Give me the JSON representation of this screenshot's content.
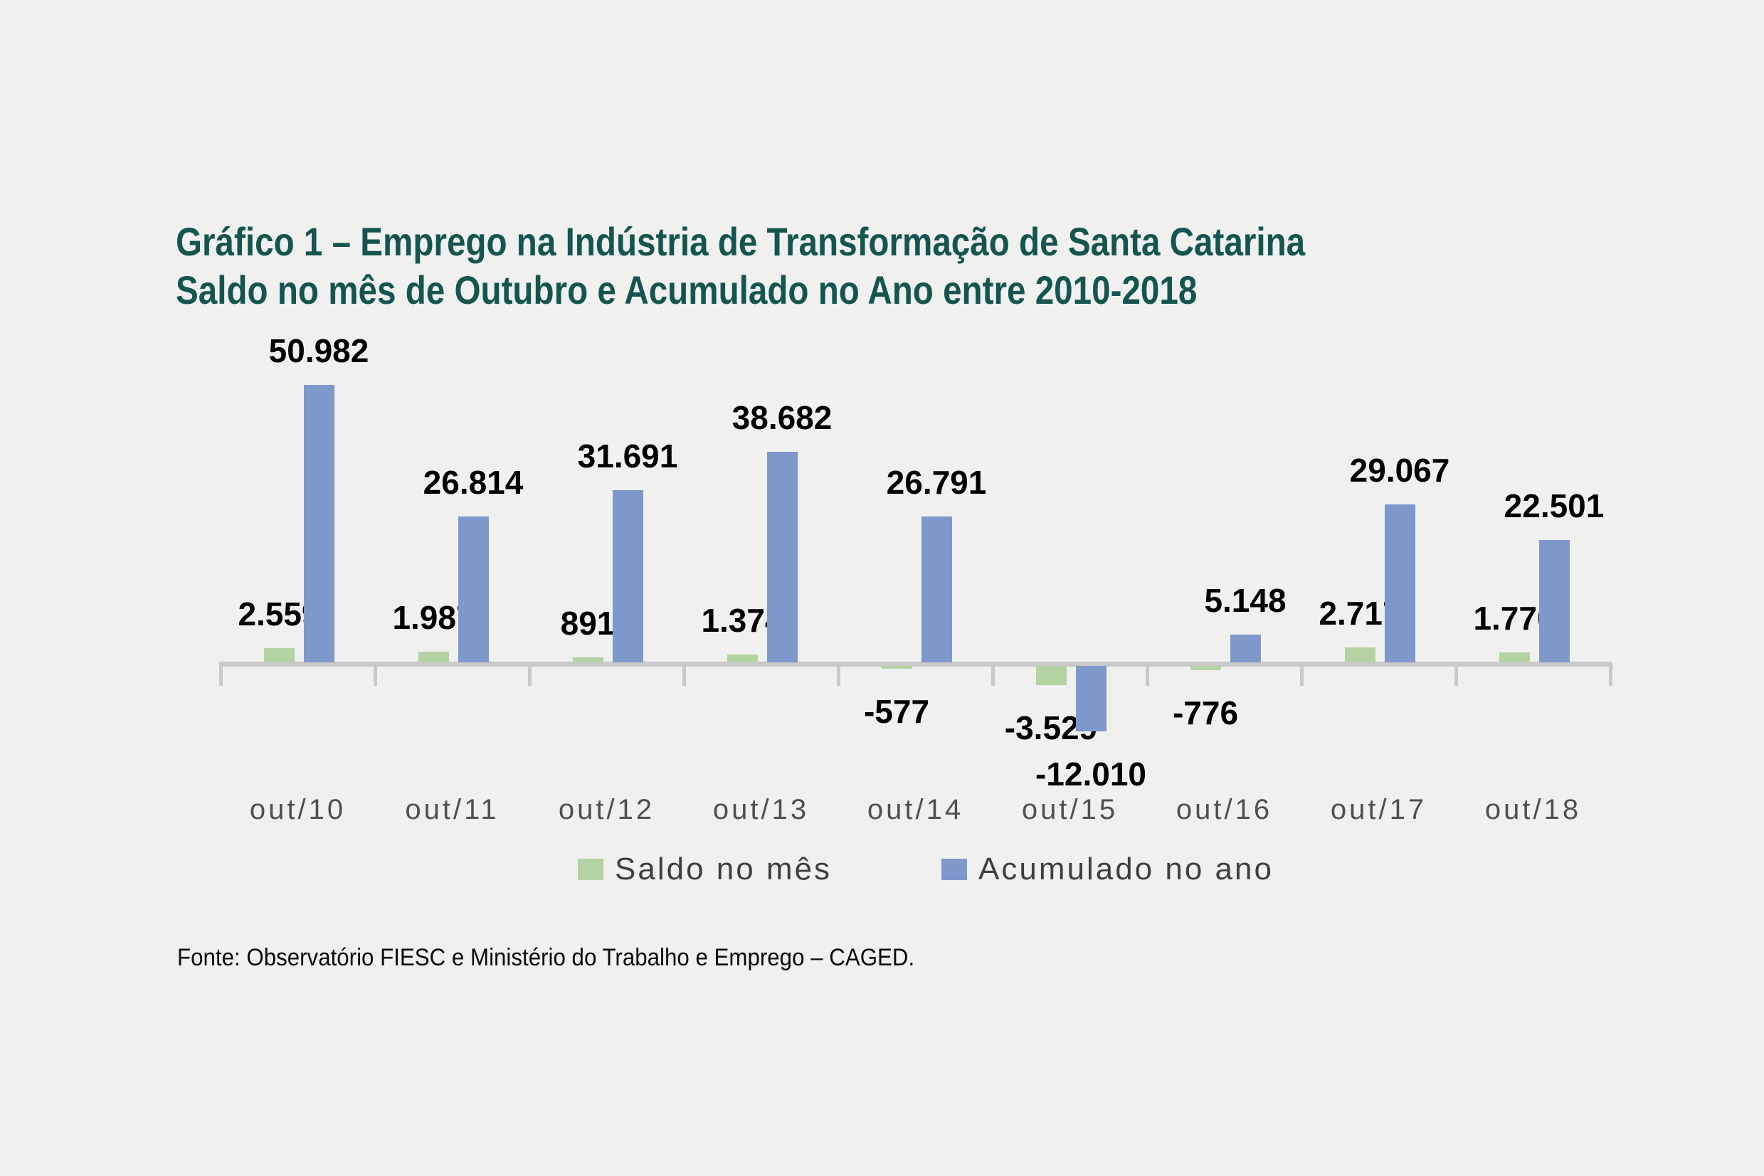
{
  "title": {
    "line1": "Gráfico 1 – Emprego na Indústria de Transformação de Santa Catarina",
    "line2": "Saldo no mês de Outubro e Acumulado no Ano entre 2010-2018"
  },
  "source_note": "Fonte: Observatório FIESC e Ministério do Trabalho e Emprego – CAGED.",
  "colors": {
    "background": "#F0F0EF",
    "title": "#14554F",
    "axis": "#C9C9C9",
    "value_label": "#000000",
    "category_label": "#4F4F4F",
    "legend_label": "#3F3F3F"
  },
  "chart_data": {
    "type": "bar",
    "title": "Gráfico 1 – Emprego na Indústria de Transformação de Santa Catarina — Saldo no mês de Outubro e Acumulado no Ano entre 2010-2018",
    "categories": [
      "out/10",
      "out/11",
      "out/12",
      "out/13",
      "out/14",
      "out/15",
      "out/16",
      "out/17",
      "out/18"
    ],
    "series": [
      {
        "name": "Saldo no mês",
        "color": "#B4D3A3",
        "values": [
          2559,
          1987,
          891,
          1374,
          -577,
          -3529,
          -776,
          2717,
          1770
        ],
        "labels": [
          "2.559",
          "1.987",
          "891",
          "1.374",
          "-577",
          "-3.529",
          "-776",
          "2.717",
          "1.770"
        ]
      },
      {
        "name": "Acumulado no ano",
        "color": "#7E98CB",
        "values": [
          50982,
          26814,
          31691,
          38682,
          26791,
          -12010,
          5148,
          29067,
          22501
        ],
        "labels": [
          "50.982",
          "26.814",
          "31.691",
          "38.682",
          "26.791",
          "-12.010",
          "5.148",
          "29.067",
          "22.501"
        ]
      }
    ],
    "xlabel": "",
    "ylabel": "",
    "ylim": [
      -12010,
      50982
    ],
    "baseline_value": 0,
    "grid": false,
    "y_axis_visible": false,
    "value_labels": "outside-end",
    "legend_position": "bottom-center",
    "x_axis_ticks": "category-boundaries"
  }
}
